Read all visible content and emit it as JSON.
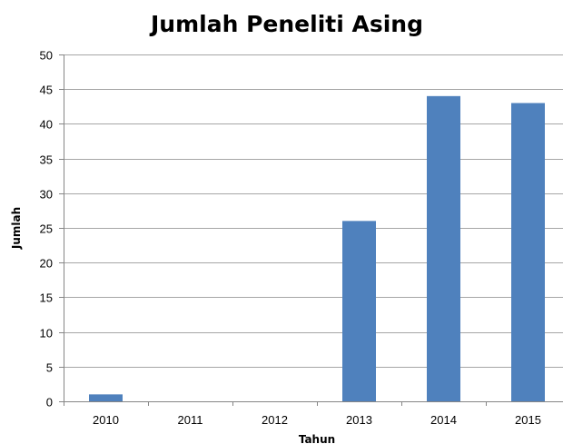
{
  "chart_data": {
    "type": "bar",
    "title": "Jumlah Peneliti Asing",
    "xlabel": "Tahun",
    "ylabel": "Jumlah",
    "categories": [
      "2010",
      "2011",
      "2012",
      "2013",
      "2014",
      "2015"
    ],
    "values": [
      1,
      0,
      0,
      26,
      44,
      43
    ],
    "ylim": [
      0,
      50
    ],
    "yticks": [
      0,
      5,
      10,
      15,
      20,
      25,
      30,
      35,
      40,
      45,
      50
    ],
    "grid": true,
    "legend": "none",
    "bar_color": "#4f81bd"
  }
}
